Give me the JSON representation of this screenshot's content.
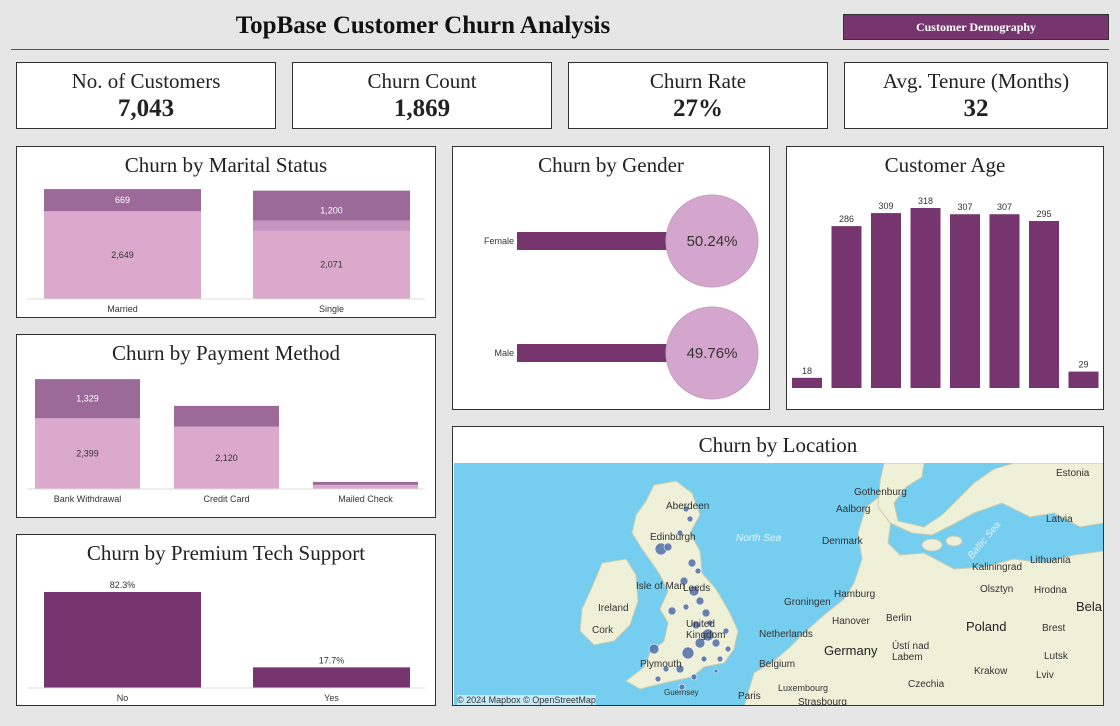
{
  "header": {
    "title": "TopBase Customer Churn Analysis",
    "button_label": "Customer Demography"
  },
  "kpis": [
    {
      "label": "No. of Customers",
      "value": "7,043"
    },
    {
      "label": "Churn Count",
      "value": "1,869"
    },
    {
      "label": "Churn Rate",
      "value": "27%"
    },
    {
      "label": "Avg. Tenure (Months)",
      "value": "32"
    }
  ],
  "colors": {
    "dark": "#77356f",
    "mid": "#9b6a98",
    "light": "#dba9cc",
    "circle": "#d4a5cd",
    "water": "#75cdef",
    "land": "#eef0d8"
  },
  "marital": {
    "title": "Churn by Marital Status"
  },
  "payment": {
    "title": "Churn by Payment Method"
  },
  "tech": {
    "title": "Churn by Premium Tech Support"
  },
  "gender": {
    "title": "Churn by Gender"
  },
  "age": {
    "title": "Customer Age"
  },
  "location": {
    "title": "Churn by Location",
    "credit": "© 2024 Mapbox  © OpenStreetMap"
  },
  "chart_data": [
    {
      "type": "bar",
      "title": "Churn by Marital Status",
      "categories": [
        "Married",
        "Single"
      ],
      "series": [
        {
          "name": "",
          "values": [
            2649,
            2071
          ]
        },
        {
          "name": "",
          "values": [
            669,
            1200
          ]
        }
      ]
    },
    {
      "type": "bar",
      "title": "Churn by Payment Method",
      "categories": [
        "Bank Withdrawal",
        "Credit Card",
        "Mailed Check"
      ],
      "series": [
        {
          "name": "",
          "values": [
            2399,
            2120,
            null
          ]
        },
        {
          "name": "",
          "values": [
            1329,
            null,
            null
          ]
        }
      ]
    },
    {
      "type": "bar",
      "title": "Churn by Premium Tech Support",
      "categories": [
        "No",
        "Yes"
      ],
      "values": [
        82.3,
        17.7
      ],
      "value_labels": [
        "82.3%",
        "17.7%"
      ]
    },
    {
      "type": "bar",
      "title": "Churn by Gender",
      "categories": [
        "Female",
        "Male"
      ],
      "values": [
        50.24,
        49.76
      ],
      "value_labels": [
        "50.24%",
        "49.76%"
      ]
    },
    {
      "type": "bar",
      "title": "Customer Age",
      "categories": [
        "",
        "",
        "",
        "",
        "",
        "",
        "",
        ""
      ],
      "values": [
        18,
        286,
        309,
        318,
        307,
        307,
        295,
        29
      ]
    }
  ],
  "map": {
    "labels": {
      "aberdeen": "Aberdeen",
      "edinburgh": "Edinburgh",
      "isle_of_man": "Isle of Man",
      "leeds": "Leeds",
      "ireland": "Ireland",
      "cork": "Cork",
      "united_kingdom": "United\nKingdom",
      "plymouth": "Plymouth",
      "guernsey": "Guernsey",
      "north_sea": "North Sea",
      "gothenburg": "Gothenburg",
      "aalborg": "Aalborg",
      "denmark": "Denmark",
      "groningen": "Groningen",
      "hamburg": "Hamburg",
      "netherlands": "Netherlands",
      "hanover": "Hanover",
      "berlin": "Berlin",
      "germany": "Germany",
      "belgium": "Belgium",
      "luxembourg": "Luxembourg",
      "paris": "Paris",
      "strasbourg": "Strasbourg",
      "usti": "Ústí nad\nLabem",
      "czechia": "Czechia",
      "poland": "Poland",
      "krakow": "Krakow",
      "lviv": "Lviv",
      "lutsk": "Lutsk",
      "brest": "Brest",
      "kaliningrad": "Kaliningrad",
      "olsztyn": "Olsztyn",
      "hrodna": "Hrodna",
      "lithuania": "Lithuania",
      "latvia": "Latvia",
      "estonia": "Estonia",
      "bela": "Bela",
      "baltic_sea": "Baltic Sea"
    }
  }
}
